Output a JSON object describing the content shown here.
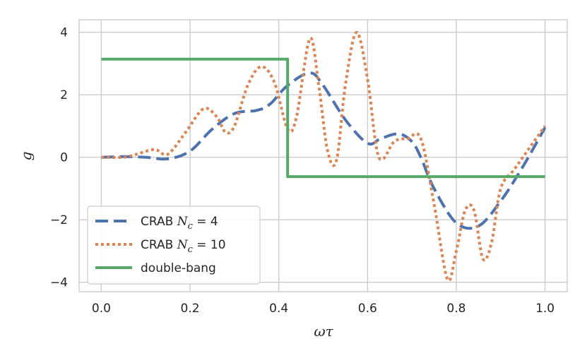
{
  "chart_data": {
    "type": "line",
    "xlabel": "ωτ",
    "ylabel": "g",
    "xlim": [
      -0.05,
      1.05
    ],
    "ylim": [
      -4.3,
      4.4
    ],
    "xticks": [
      0.0,
      0.2,
      0.4,
      0.6,
      0.8,
      1.0
    ],
    "xtick_labels": [
      "0.0",
      "0.2",
      "0.4",
      "0.6",
      "0.8",
      "1.0"
    ],
    "yticks": [
      -4,
      -2,
      0,
      2,
      4
    ],
    "ytick_labels": [
      "−4",
      "−2",
      "0",
      "2",
      "4"
    ],
    "grid": true,
    "legend_position": "lower-left",
    "series": [
      {
        "name": "CRAB Nc = 4",
        "legend_label": {
          "prefix": "CRAB ",
          "var": "N",
          "sub": "c",
          "suffix": " = 4"
        },
        "color": "#4c72b0",
        "style": "dashed",
        "x": [
          0.0,
          0.05,
          0.1,
          0.15,
          0.2,
          0.25,
          0.3,
          0.35,
          0.38,
          0.42,
          0.47,
          0.5,
          0.55,
          0.6,
          0.63,
          0.67,
          0.7,
          0.72,
          0.75,
          0.8,
          0.85,
          0.9,
          0.95,
          1.0
        ],
        "y": [
          0.0,
          0.02,
          0.0,
          -0.05,
          0.2,
          0.9,
          1.4,
          1.5,
          1.7,
          2.3,
          2.7,
          2.3,
          1.2,
          0.45,
          0.6,
          0.75,
          0.5,
          0.0,
          -1.0,
          -2.1,
          -2.2,
          -1.4,
          -0.3,
          0.95
        ]
      },
      {
        "name": "CRAB Nc = 10",
        "legend_label": {
          "prefix": "CRAB ",
          "var": "N",
          "sub": "c",
          "suffix": " = 10"
        },
        "color": "#dd8452",
        "style": "dotted",
        "x": [
          0.0,
          0.05,
          0.08,
          0.12,
          0.15,
          0.19,
          0.23,
          0.26,
          0.28,
          0.3,
          0.33,
          0.36,
          0.39,
          0.42,
          0.44,
          0.47,
          0.49,
          0.51,
          0.53,
          0.55,
          0.575,
          0.6,
          0.62,
          0.635,
          0.66,
          0.69,
          0.72,
          0.75,
          0.78,
          0.8,
          0.82,
          0.84,
          0.86,
          0.88,
          0.9,
          0.93,
          0.96,
          1.0
        ],
        "y": [
          0.0,
          0.0,
          0.1,
          0.25,
          0.1,
          0.8,
          1.55,
          1.3,
          0.8,
          1.0,
          2.3,
          2.9,
          2.4,
          0.9,
          1.3,
          3.8,
          2.3,
          0.2,
          -0.1,
          2.3,
          4.0,
          2.5,
          0.3,
          -0.05,
          0.5,
          0.6,
          0.6,
          -1.5,
          -3.9,
          -3.0,
          -1.7,
          -1.7,
          -3.25,
          -2.7,
          -1.0,
          -0.4,
          0.2,
          1.0
        ]
      },
      {
        "name": "double-bang",
        "legend_label": {
          "prefix": "double-bang",
          "var": "",
          "sub": "",
          "suffix": ""
        },
        "color": "#55a868",
        "style": "solid",
        "x": [
          0.0,
          0.42,
          0.42,
          1.0
        ],
        "y": [
          3.14,
          3.14,
          -0.62,
          -0.62
        ]
      }
    ]
  }
}
